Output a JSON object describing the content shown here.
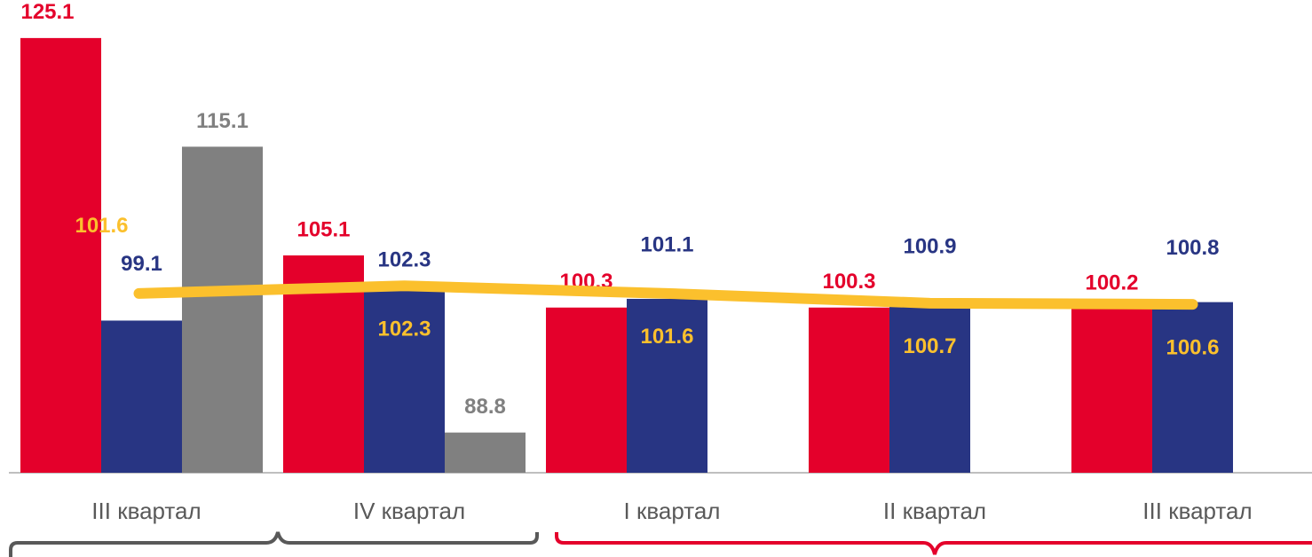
{
  "chart_data": {
    "type": "bar",
    "categories": [
      "III квартал",
      "IV квартал",
      "I квартал",
      "II квартал",
      "III квартал"
    ],
    "series": [
      {
        "type": "bar",
        "color": "#e4002b",
        "values": [
          125.1,
          105.1,
          100.3,
          100.3,
          100.2
        ]
      },
      {
        "type": "bar",
        "color": "#283583",
        "values": [
          99.1,
          102.3,
          101.1,
          100.9,
          100.8
        ]
      },
      {
        "type": "bar",
        "color": "#808080",
        "values": [
          115.1,
          88.8,
          null,
          null,
          null
        ]
      },
      {
        "type": "line",
        "color": "#fbc02d",
        "values": [
          101.6,
          102.3,
          101.6,
          100.7,
          100.6
        ]
      }
    ],
    "ylim": [
      85.1,
      128.6
    ]
  }
}
